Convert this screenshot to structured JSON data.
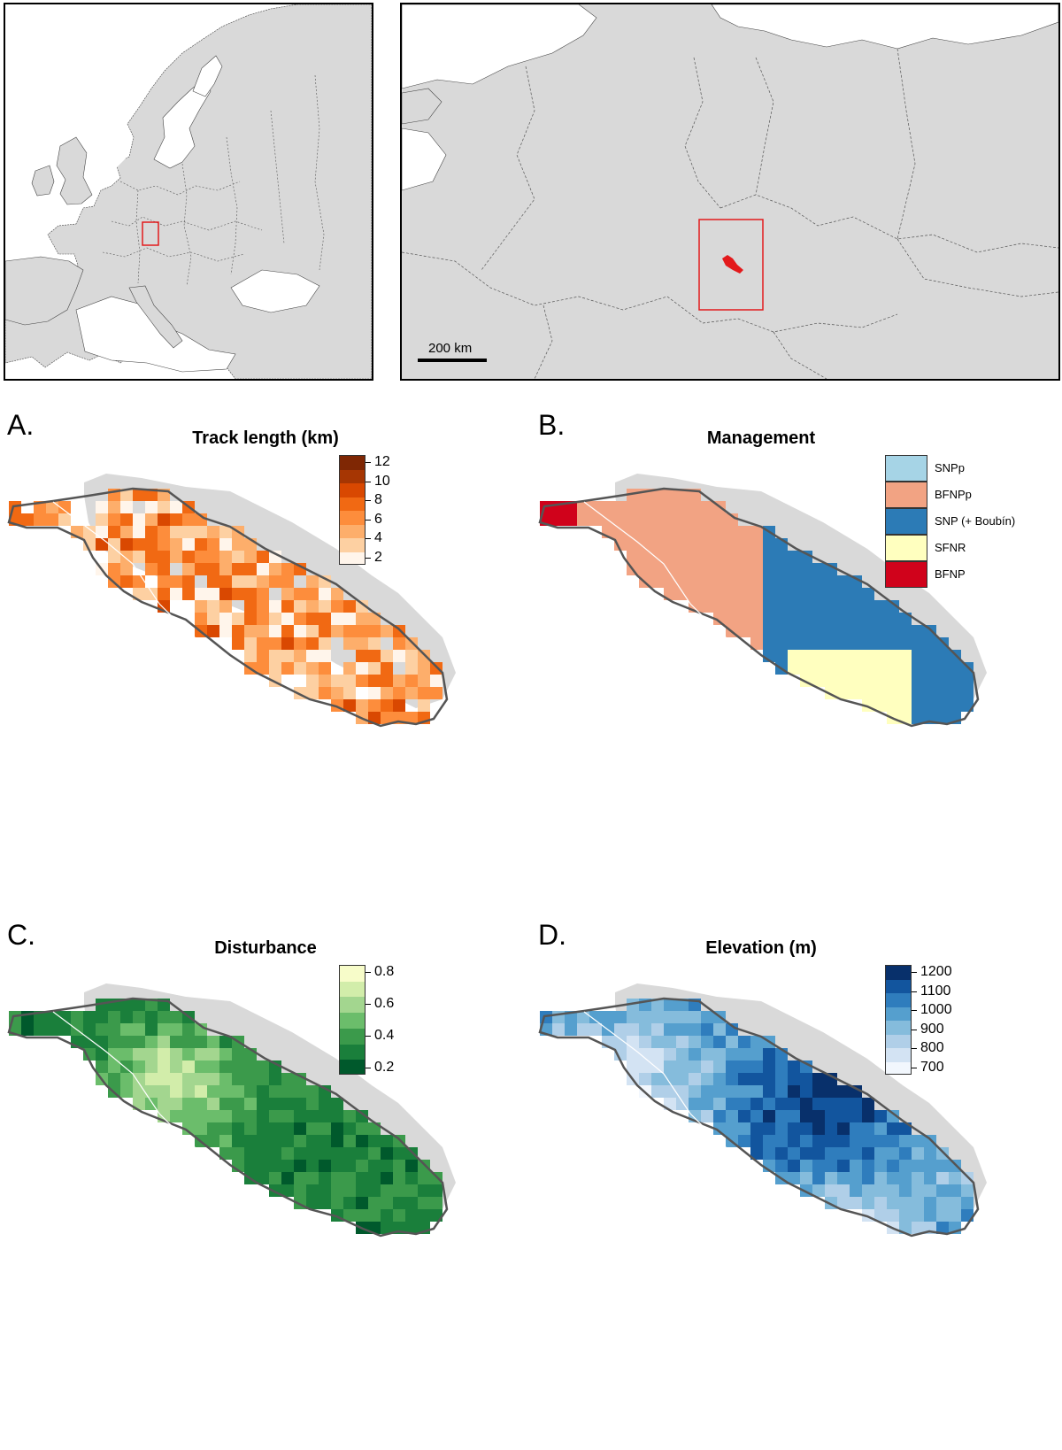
{
  "inset_europe": {
    "locator_box_color": "#e31a1c"
  },
  "inset_region": {
    "scale_label": "200 km",
    "locator_box_color": "#e31a1c",
    "study_area_color": "#e31a1c"
  },
  "panels": [
    {
      "letter": "A.",
      "title": "Track length (km)",
      "legend_type": "continuous",
      "ticks": [
        "12",
        "10",
        "8",
        "6",
        "4",
        "2"
      ],
      "colors": [
        "#fff5eb",
        "#fdd0a2",
        "#fdae6b",
        "#fd8d3c",
        "#f16913",
        "#d94801",
        "#a63603",
        "#7f2704"
      ]
    },
    {
      "letter": "B.",
      "title": "Management",
      "legend_type": "categorical",
      "categories": [
        {
          "label": "SNPp",
          "color": "#a6d4e6"
        },
        {
          "label": "BFNPp",
          "color": "#f2a383"
        },
        {
          "label": "SNP (+ Boubín)",
          "color": "#2c7bb6"
        },
        {
          "label": "SFNR",
          "color": "#ffffbf"
        },
        {
          "label": "BFNP",
          "color": "#d0021b"
        }
      ]
    },
    {
      "letter": "C.",
      "title": "Disturbance",
      "legend_type": "continuous",
      "ticks": [
        "0.8",
        "0.6",
        "0.4",
        "0.2"
      ],
      "colors": [
        "#00592c",
        "#1a7f3b",
        "#3b9a4b",
        "#6bbd6b",
        "#a3d68f",
        "#d2edaa",
        "#f7fcc9"
      ]
    },
    {
      "letter": "D.",
      "title": "Elevation (m)",
      "legend_type": "continuous",
      "ticks": [
        "1200",
        "1100",
        "1000",
        "900",
        "800",
        "700"
      ],
      "colors": [
        "#f2f7fd",
        "#d3e3f3",
        "#b0cfe8",
        "#85bcdc",
        "#559fce",
        "#2f7dbd",
        "#12559e",
        "#08306b"
      ]
    }
  ]
}
